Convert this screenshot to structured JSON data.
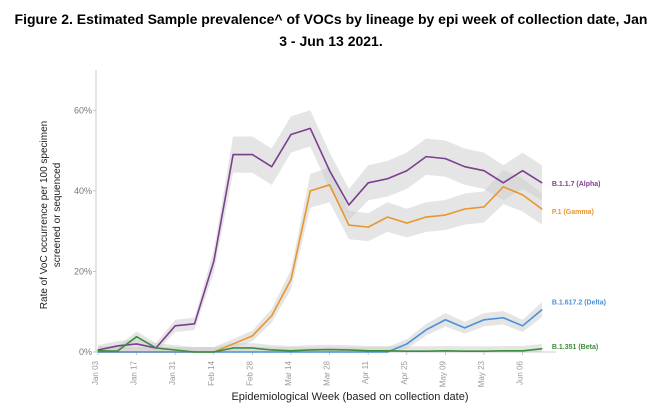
{
  "chart_data": {
    "type": "line",
    "title": "Figure 2. Estimated Sample prevalence^ of VOCs by lineage by epi week of collection date, Jan 3 - Jun 13 2021.",
    "xlabel": "Epidemiological Week (based on collection date)",
    "ylabel": "Rate of VoC occurrence per 100 specimen screened or sequenced",
    "ylim": [
      0,
      70
    ],
    "yticks": [
      0,
      20,
      40,
      60
    ],
    "ytick_labels": [
      "0%",
      "20%",
      "40%",
      "60%"
    ],
    "x_weeks": 24,
    "xtick_labels": [
      {
        "index": 0,
        "label": "Jan 03"
      },
      {
        "index": 2,
        "label": "Jan 17"
      },
      {
        "index": 4,
        "label": "Jan 31"
      },
      {
        "index": 6,
        "label": "Feb 14"
      },
      {
        "index": 8,
        "label": "Feb 28"
      },
      {
        "index": 10,
        "label": "Mar 14"
      },
      {
        "index": 12,
        "label": "Mar 28"
      },
      {
        "index": 14,
        "label": "Apr 11"
      },
      {
        "index": 16,
        "label": "Apr 25"
      },
      {
        "index": 18,
        "label": "May 09"
      },
      {
        "index": 20,
        "label": "May 23"
      },
      {
        "index": 22,
        "label": "Jun 06"
      }
    ],
    "grid": false,
    "series": [
      {
        "name": "B.1.1.7 (Alpha)",
        "color": "#7b3f8f",
        "values": [
          0.5,
          1.5,
          2,
          1,
          6.5,
          7,
          22.5,
          49,
          49,
          46,
          54,
          55.5,
          45,
          36.5,
          42,
          43,
          45,
          48.5,
          48,
          46,
          45,
          42,
          45,
          42
        ]
      },
      {
        "name": "P.1 (Gamma)",
        "color": "#e8962e",
        "values": [
          0,
          0,
          0,
          0,
          0,
          0,
          0,
          2,
          4,
          9,
          18,
          40,
          41.5,
          31.5,
          31,
          33.5,
          32,
          33.5,
          34,
          35.5,
          36,
          41,
          39,
          35.5
        ]
      },
      {
        "name": "B.1.617.2 (Delta)",
        "color": "#4a90d9",
        "values": [
          0,
          0,
          0,
          0,
          0,
          0,
          0,
          0,
          0,
          0,
          0,
          0,
          0,
          0,
          0,
          0,
          2,
          5.5,
          8,
          6,
          8,
          8.5,
          6.5,
          10.5
        ]
      },
      {
        "name": "B.1.351 (Beta)",
        "color": "#3a8f3a",
        "values": [
          0.3,
          0.2,
          3.8,
          1,
          0.5,
          0,
          0,
          1,
          1,
          0.5,
          0.3,
          0.5,
          0.6,
          0.5,
          0.3,
          0.3,
          0.2,
          0.2,
          0.3,
          0.2,
          0.2,
          0.3,
          0.3,
          0.8
        ]
      }
    ]
  }
}
